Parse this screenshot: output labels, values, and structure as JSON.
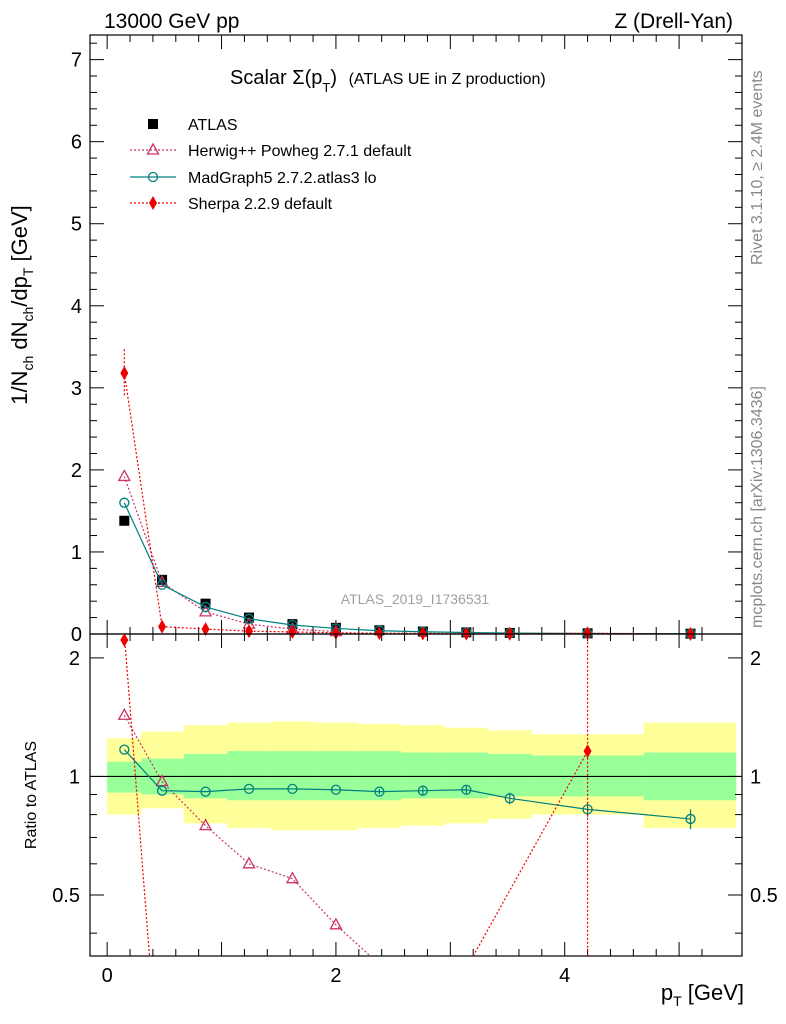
{
  "header": {
    "energy": "13000 GeV pp",
    "process": "Z (Drell-Yan)"
  },
  "side_labels": {
    "rivet": "Rivet 3.1.10, ≥ 2.4M events",
    "mcplots": "mcplots.cern.ch [arXiv:1306.3436]"
  },
  "plot_title": {
    "main": "Scalar Σ(p",
    "sub": "T",
    "close": ")",
    "extra": "(ATLAS UE in Z production)"
  },
  "watermark": "ATLAS_2019_I1736531",
  "axis": {
    "ylabel_top": "1/N_ch dN_ch/dp_T [GeV]",
    "ylabel_bottom": "Ratio to ATLAS",
    "xlabel": "p_T [GeV]"
  },
  "colors": {
    "atlas": "#000000",
    "herwig": "#cc3366",
    "madgraph": "#008080",
    "sherpa": "#ee0000",
    "band_yellow": "#ffff99",
    "band_green": "#99ff99"
  },
  "chart_data": [
    {
      "type": "line",
      "panel": "main",
      "title": "Scalar Σ(pT) (ATLAS UE in Z production)",
      "xlabel": "p_T [GeV]",
      "ylabel": "1/N_ch dN_ch/dp_T [GeV]",
      "xlim": [
        -0.15,
        5.55
      ],
      "ylim": [
        0,
        7.3
      ],
      "yticks": [
        0,
        1,
        2,
        3,
        4,
        5,
        6,
        7
      ],
      "legend": "top-left",
      "series": [
        {
          "name": "ATLAS",
          "marker": "square",
          "x": [
            0.15,
            0.48,
            0.86,
            1.24,
            1.62,
            2.0,
            2.38,
            2.76,
            3.14,
            3.52,
            4.2,
            5.1
          ],
          "y": [
            1.38,
            0.66,
            0.37,
            0.2,
            0.12,
            0.075,
            0.045,
            0.03,
            0.02,
            0.013,
            0.008,
            0.004
          ]
        },
        {
          "name": "Herwig++ Powheg 2.7.1 default",
          "marker": "triangle-open",
          "x": [
            0.15,
            0.48,
            0.86,
            1.24,
            1.62,
            2.0
          ],
          "y": [
            1.92,
            0.63,
            0.27,
            0.12,
            0.06,
            0.03
          ]
        },
        {
          "name": "MadGraph5 2.7.2.atlas3 lo",
          "marker": "circle-open",
          "x": [
            0.15,
            0.48,
            0.86,
            1.24,
            1.62,
            2.0,
            2.38,
            2.76,
            3.14,
            3.52,
            4.2,
            5.1
          ],
          "y": [
            1.6,
            0.6,
            0.33,
            0.185,
            0.11,
            0.068,
            0.04,
            0.027,
            0.018,
            0.011,
            0.006,
            0.003
          ]
        },
        {
          "name": "Sherpa 2.2.9 default",
          "marker": "diamond",
          "x": [
            0.15,
            0.48,
            0.86,
            1.24,
            1.62,
            2.0,
            2.38,
            2.76,
            3.14,
            3.52,
            4.2,
            5.1
          ],
          "y": [
            3.18,
            0.09,
            0.06,
            0.035,
            0.025,
            0.015,
            0.01,
            0.008,
            0.005,
            0.003,
            0.009,
            0.001
          ]
        }
      ]
    },
    {
      "type": "line",
      "panel": "ratio",
      "ylabel": "Ratio to ATLAS",
      "xlim": [
        -0.15,
        5.55
      ],
      "ylim": [
        0.35,
        2.3
      ],
      "log_y": true,
      "xticks": [
        0,
        2,
        4
      ],
      "yticks": [
        0.5,
        1,
        2
      ],
      "bands": {
        "x_edges": [
          0.0,
          0.3,
          0.67,
          1.05,
          1.43,
          1.81,
          2.19,
          2.57,
          2.95,
          3.33,
          3.71,
          4.69,
          5.5
        ],
        "yellow_low": [
          0.8,
          0.83,
          0.76,
          0.74,
          0.73,
          0.73,
          0.74,
          0.75,
          0.76,
          0.78,
          0.8,
          0.74
        ],
        "yellow_high": [
          1.25,
          1.3,
          1.35,
          1.37,
          1.38,
          1.37,
          1.36,
          1.35,
          1.33,
          1.31,
          1.28,
          1.37
        ],
        "green_low": [
          0.91,
          0.9,
          0.88,
          0.87,
          0.87,
          0.87,
          0.87,
          0.88,
          0.88,
          0.89,
          0.89,
          0.87
        ],
        "green_high": [
          1.09,
          1.11,
          1.14,
          1.16,
          1.16,
          1.16,
          1.16,
          1.15,
          1.15,
          1.14,
          1.13,
          1.15
        ]
      },
      "series": [
        {
          "name": "Herwig++ Powheg 2.7.1 default",
          "x": [
            0.15,
            0.48,
            0.86,
            1.24,
            1.62,
            2.0,
            2.3
          ],
          "y": [
            1.43,
            0.97,
            0.75,
            0.6,
            0.55,
            0.42,
            0.35
          ]
        },
        {
          "name": "MadGraph5 2.7.2.atlas3 lo",
          "x": [
            0.15,
            0.48,
            0.86,
            1.24,
            1.62,
            2.0,
            2.38,
            2.76,
            3.14,
            3.52,
            4.2,
            5.1
          ],
          "y": [
            1.17,
            0.92,
            0.915,
            0.93,
            0.93,
            0.925,
            0.915,
            0.92,
            0.925,
            0.88,
            0.825,
            0.78
          ],
          "err": [
            0,
            0,
            0,
            0,
            0,
            0,
            0.015,
            0.02,
            0.025,
            0.03,
            0.035,
            0.045
          ]
        },
        {
          "name": "Sherpa 2.2.9 default",
          "x": [
            0.15,
            4.2
          ],
          "y": [
            2.22,
            1.16
          ]
        }
      ]
    }
  ]
}
